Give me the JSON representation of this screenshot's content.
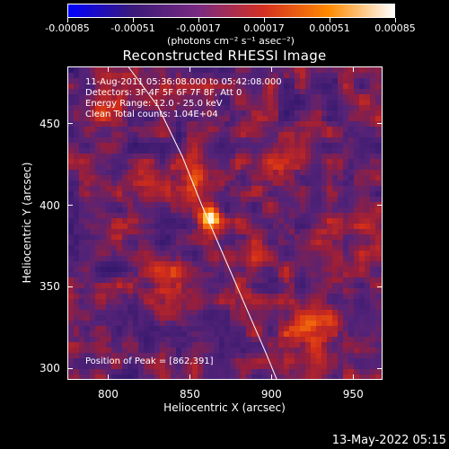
{
  "colorbar": {
    "tick_labels": [
      "-0.00085",
      "-0.00051",
      "-0.00017",
      "0.00017",
      "0.00051",
      "0.00085"
    ],
    "units": "(photons cm⁻² s⁻¹ asec⁻²)",
    "colors": [
      "#0000ff",
      "#3b1a78",
      "#7a2a82",
      "#d43020",
      "#ff8a00",
      "#ffffff"
    ]
  },
  "title": "Reconstructed RHESSI Image",
  "annotations": {
    "time_range": "11-Aug-2011 05:36:08.000 to 05:42:08.000",
    "detectors": "Detectors: 3F 4F 5F 6F 7F 8F, Att 0",
    "energy_range": "Energy Range: 12.0 - 25.0 keV",
    "clean": "Clean    Total counts: 1.04E+04",
    "peak": "Position of Peak = [862,391]"
  },
  "footer": {
    "date": "13-May-2022 05:15"
  },
  "chart_data": {
    "type": "heatmap",
    "title": "Reconstructed RHESSI Image",
    "xlabel": "Heliocentric X (arcsec)",
    "ylabel": "Heliocentric Y (arcsec)",
    "xlim": [
      775,
      968
    ],
    "ylim": [
      293,
      485
    ],
    "xticks": [
      800,
      850,
      900,
      950
    ],
    "yticks": [
      300,
      350,
      400,
      450
    ],
    "colorbar_range": [
      -0.00085,
      0.00085
    ],
    "limb_curve": [
      [
        812,
        485
      ],
      [
        830,
        461
      ],
      [
        845,
        430
      ],
      [
        857,
        400
      ],
      [
        870,
        370
      ],
      [
        883,
        340
      ],
      [
        896,
        310
      ],
      [
        903,
        293
      ]
    ],
    "sources": [
      {
        "x": 862,
        "y": 391,
        "intensity": 0.00085
      },
      {
        "x": 922,
        "y": 323,
        "intensity": 0.0005
      },
      {
        "x": 848,
        "y": 410,
        "intensity": 0.0003
      },
      {
        "x": 885,
        "y": 365,
        "intensity": 0.00028
      },
      {
        "x": 840,
        "y": 355,
        "intensity": 0.0002
      },
      {
        "x": 800,
        "y": 455,
        "intensity": 0.00022
      },
      {
        "x": 900,
        "y": 420,
        "intensity": 0.0002
      },
      {
        "x": 945,
        "y": 380,
        "intensity": 0.00018
      }
    ]
  }
}
